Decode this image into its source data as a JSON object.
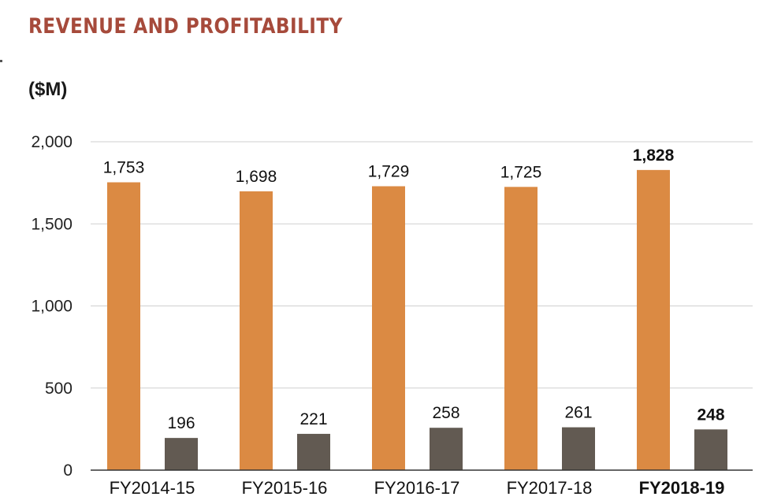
{
  "title": "REVENUE AND PROFITABILITY",
  "unit_label": "($M)",
  "colors": {
    "title": "#A64A3B",
    "revenue_bar": "#DB8A43",
    "profit_bar": "#625A52",
    "gridline": "#CFCFCF",
    "axis": "#333333"
  },
  "chart_data": {
    "type": "bar",
    "categories": [
      "FY2014-15",
      "FY2015-16",
      "FY2016-17",
      "FY2017-18",
      "FY2018-19"
    ],
    "highlight_category": "FY2018-19",
    "series": [
      {
        "values": [
          1753,
          1698,
          1729,
          1725,
          1828
        ],
        "value_labels": [
          "1,753",
          "1,698",
          "1,729",
          "1,725",
          "1,828"
        ]
      },
      {
        "values": [
          196,
          221,
          258,
          261,
          248
        ],
        "value_labels": [
          "196",
          "221",
          "258",
          "261",
          "248"
        ]
      }
    ],
    "y_ticks": [
      0,
      500,
      1000,
      1500,
      2000
    ],
    "y_tick_labels": [
      "0",
      "500",
      "1,000",
      "1,500",
      "2,000"
    ],
    "ylim": [
      0,
      2000
    ],
    "grid": true,
    "legend": "none"
  }
}
